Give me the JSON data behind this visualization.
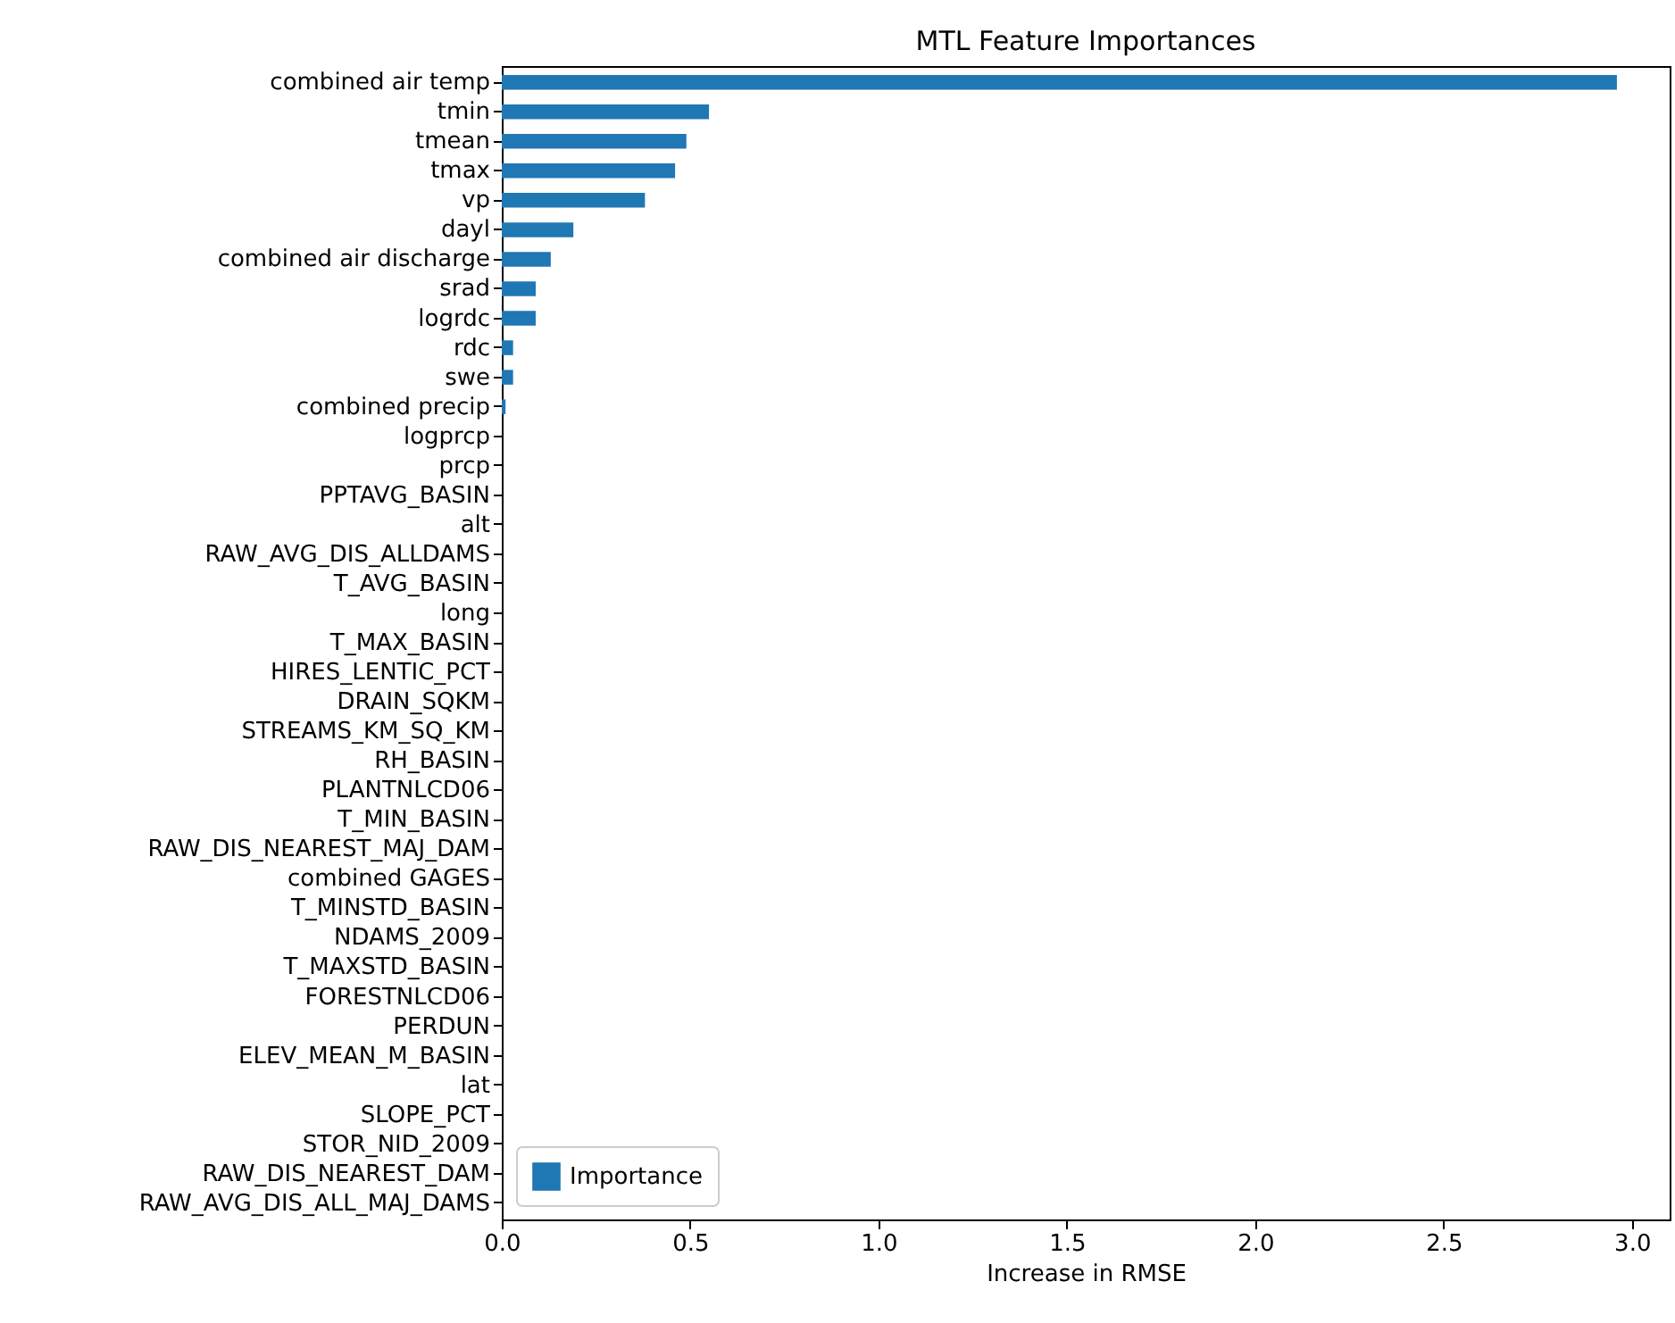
{
  "chart_data": {
    "type": "bar",
    "orientation": "horizontal",
    "title": "MTL Feature Importances",
    "xlabel": "Increase in RMSE",
    "categories": [
      "combined air temp",
      "tmin",
      "tmean",
      "tmax",
      "vp",
      "dayl",
      "combined air discharge",
      "srad",
      "logrdc",
      "rdc",
      "swe",
      "combined precip",
      "logprcp",
      "prcp",
      "PPTAVG_BASIN",
      "alt",
      "RAW_AVG_DIS_ALLDAMS",
      "T_AVG_BASIN",
      "long",
      "T_MAX_BASIN",
      "HIRES_LENTIC_PCT",
      "DRAIN_SQKM",
      "STREAMS_KM_SQ_KM",
      "RH_BASIN",
      "PLANTNLCD06",
      "T_MIN_BASIN",
      "RAW_DIS_NEAREST_MAJ_DAM",
      "combined GAGES",
      "T_MINSTD_BASIN",
      "NDAMS_2009",
      "T_MAXSTD_BASIN",
      "FORESTNLCD06",
      "PERDUN",
      "ELEV_MEAN_M_BASIN",
      "lat",
      "SLOPE_PCT",
      "STOR_NID_2009",
      "RAW_DIS_NEAREST_DAM",
      "RAW_AVG_DIS_ALL_MAJ_DAMS"
    ],
    "series": [
      {
        "name": "Importance",
        "color": "#1f77b4",
        "values": [
          2.96,
          0.55,
          0.49,
          0.46,
          0.38,
          0.19,
          0.13,
          0.09,
          0.09,
          0.03,
          0.03,
          0.01,
          0,
          0,
          0,
          0,
          0,
          0,
          0,
          0,
          0,
          0,
          0,
          0,
          0,
          0,
          0,
          0,
          0,
          0,
          0,
          0,
          0,
          0,
          0,
          0,
          0,
          0,
          0
        ]
      }
    ],
    "xlim": [
      0,
      3.1
    ],
    "xticks": [
      {
        "value": 0,
        "label": "0.0"
      },
      0.5,
      {
        "value": 1,
        "label": "1.0"
      },
      1.5,
      {
        "value": 2,
        "label": "2.0"
      },
      2.5,
      {
        "value": 3,
        "label": "3.0"
      }
    ],
    "grid": false,
    "legend": "bottom left"
  }
}
